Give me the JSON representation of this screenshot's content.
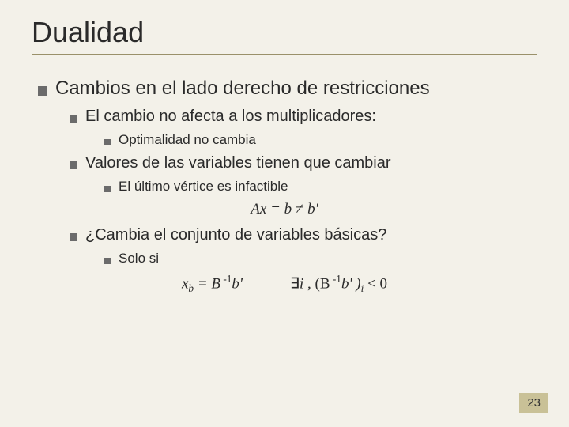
{
  "colors": {
    "background": "#f3f1e9",
    "text": "#2a2a2a",
    "title": "#2a2a2a",
    "underline": "#9a916a",
    "bullet": "#6b6b6b",
    "pagenum_bg": "#c9c197",
    "pagenum_text": "#333333"
  },
  "fonts": {
    "title_size": 36,
    "lvl1_size": 24,
    "lvl2_size": 20,
    "lvl3_size": 17,
    "formula_size": 19,
    "pagenum_size": 15
  },
  "title": "Dualidad",
  "content": {
    "l1": "Cambios en el lado derecho de restricciones",
    "l2a": "El cambio no afecta a los multiplicadores:",
    "l3a": "Optimalidad no cambia",
    "l2b": "Valores de las variables tienen que cambiar",
    "l3b": "El último vértice es infactible",
    "formula1_lhs": "Ax = b",
    "formula1_neq": "≠",
    "formula1_rhs": "b'",
    "l2c": "¿Cambia el conjunto de variables básicas?",
    "l3c": "Solo si",
    "formula2_left_prefix": "x",
    "formula2_left_sub": "b",
    "formula2_left_eq": " = B",
    "formula2_left_sup": " -1",
    "formula2_left_tail": "b'",
    "formula2_right_exists": "∃",
    "formula2_right_i": "i ",
    "formula2_right_comma": ", (B",
    "formula2_right_sup": " -1",
    "formula2_right_bprime": "b' )",
    "formula2_right_sub": "i",
    "formula2_right_tail": " < 0"
  },
  "page_number": "23"
}
